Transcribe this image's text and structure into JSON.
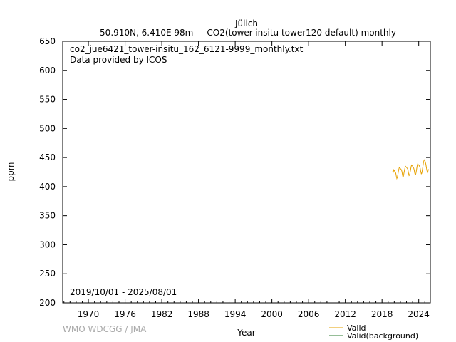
{
  "header": {
    "station": "Jülich",
    "subtitle": "50.910N, 6.410E 98m     CO2(tower-insitu tower120 default) monthly"
  },
  "annotations": {
    "filename": "co2_jue6421_tower-insitu_162_6121-9999_monthly.txt",
    "provider": "Data provided by ICOS",
    "period": "2019/10/01 - 2025/08/01"
  },
  "footer": {
    "credit": "WMO WDCGG / JMA"
  },
  "colors": {
    "valid": "#e6a100",
    "background": "#2e7d32"
  },
  "chart_data": {
    "type": "line",
    "xlabel": "Year",
    "ylabel": "ppm",
    "xlim": [
      1965.8,
      2025.9
    ],
    "ylim": [
      200,
      650
    ],
    "xticks": [
      1970,
      1976,
      1982,
      1988,
      1994,
      2000,
      2006,
      2012,
      2018,
      2024
    ],
    "yticks": [
      200,
      250,
      300,
      350,
      400,
      450,
      500,
      550,
      600,
      650
    ],
    "grid": false,
    "legend": {
      "position": "bottom-right",
      "entries": [
        "Valid",
        "Valid(background)"
      ]
    },
    "series": [
      {
        "name": "Valid",
        "x": [
          2019.75,
          2019.83,
          2019.92,
          2020.0,
          2020.08,
          2020.17,
          2020.25,
          2020.33,
          2020.42,
          2020.5,
          2020.58,
          2020.67,
          2020.75,
          2020.83,
          2020.92,
          2021.0,
          2021.08,
          2021.17,
          2021.25,
          2021.33,
          2021.42,
          2021.5,
          2021.58,
          2021.67,
          2021.75,
          2021.83,
          2021.92,
          2022.0,
          2022.08,
          2022.17,
          2022.25,
          2022.33,
          2022.42,
          2022.5,
          2022.58,
          2022.67,
          2022.75,
          2022.83,
          2022.92,
          2023.0,
          2023.08,
          2023.17,
          2023.25,
          2023.33,
          2023.42,
          2023.5,
          2023.58,
          2023.67,
          2023.75,
          2023.83,
          2023.92,
          2024.0,
          2024.08,
          2024.17,
          2024.25,
          2024.33,
          2024.42,
          2024.5,
          2024.58,
          2024.67,
          2024.75,
          2024.83,
          2024.92,
          2025.0,
          2025.08,
          2025.17,
          2025.25,
          2025.33,
          2025.42,
          2025.5,
          2025.58
        ],
        "values": [
          427,
          424,
          429,
          428,
          426,
          425,
          423,
          418,
          414,
          416,
          420,
          426,
          430,
          433,
          432,
          431,
          430,
          429,
          426,
          421,
          416,
          418,
          423,
          428,
          432,
          435,
          434,
          433,
          432,
          431,
          428,
          423,
          419,
          420,
          424,
          429,
          434,
          437,
          436,
          435,
          433,
          432,
          429,
          424,
          420,
          421,
          425,
          431,
          436,
          439,
          438,
          437,
          436,
          434,
          431,
          426,
          422,
          423,
          428,
          434,
          440,
          444,
          446,
          445,
          442,
          438,
          433,
          428,
          424,
          426,
          430
        ]
      },
      {
        "name": "Valid(background)",
        "x": [],
        "values": []
      }
    ]
  }
}
